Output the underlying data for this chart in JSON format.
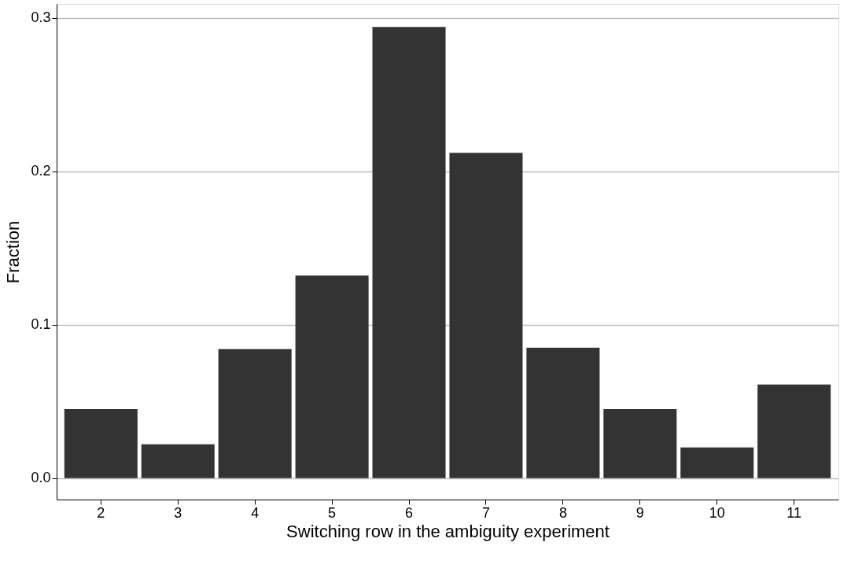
{
  "chart_data": {
    "type": "bar",
    "xlabel": "Switching row in the ambiguity experiment",
    "ylabel": "Fraction",
    "categories": [
      "2",
      "3",
      "4",
      "5",
      "6",
      "7",
      "8",
      "9",
      "10",
      "11"
    ],
    "values": [
      0.045,
      0.022,
      0.084,
      0.132,
      0.294,
      0.212,
      0.085,
      0.045,
      0.02,
      0.061
    ],
    "color": "#333333",
    "ylim": [
      -0.014,
      0.309
    ],
    "yticks": [
      {
        "value": 0,
        "label": "0.0"
      },
      {
        "value": 0.1,
        "label": "0.1"
      },
      {
        "value": 0.2,
        "label": "0.2"
      },
      {
        "value": 0.3,
        "label": "0.3"
      }
    ],
    "grid": "y"
  }
}
